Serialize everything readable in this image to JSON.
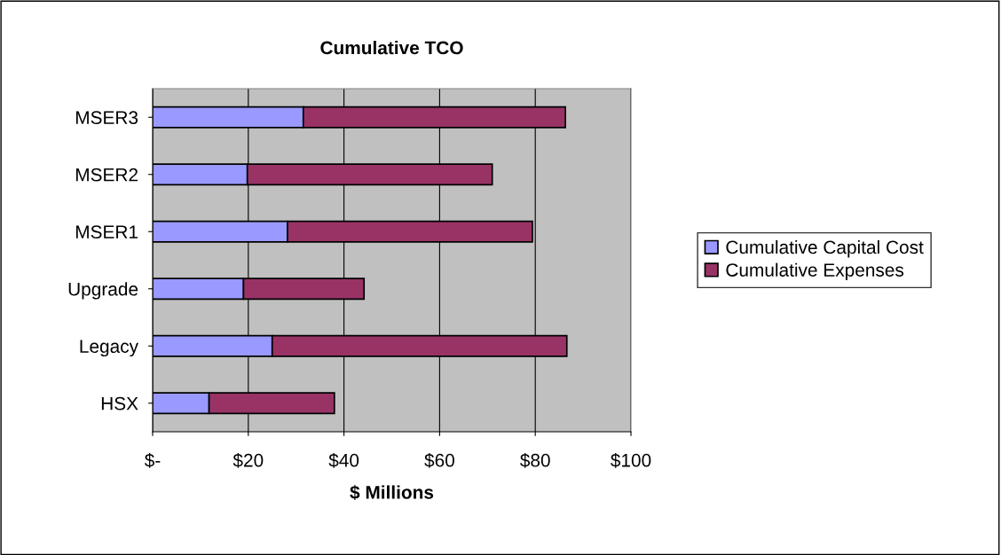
{
  "chart_data": {
    "type": "bar",
    "orientation": "horizontal",
    "stacked": true,
    "title": "Cumulative TCO",
    "xlabel": "$ Millions",
    "categories": [
      "MSER3",
      "MSER2",
      "MSER1",
      "Upgrade",
      "Legacy",
      "HSX"
    ],
    "series": [
      {
        "name": "Cumulative Capital Cost",
        "color": "#9999ff",
        "values": [
          31.5,
          19.8,
          28.2,
          19.0,
          25.0,
          11.8
        ]
      },
      {
        "name": "Cumulative Expenses",
        "color": "#993366",
        "values": [
          54.8,
          51.2,
          51.2,
          25.2,
          61.6,
          26.2
        ]
      }
    ],
    "xlim": [
      0,
      100
    ],
    "xticks": [
      {
        "value": 0,
        "label": "$-"
      },
      {
        "value": 20,
        "label": "$20"
      },
      {
        "value": 40,
        "label": "$40"
      },
      {
        "value": 60,
        "label": "$60"
      },
      {
        "value": 80,
        "label": "$80"
      },
      {
        "value": 100,
        "label": "$100"
      }
    ],
    "grid": "x",
    "legend": "right"
  }
}
